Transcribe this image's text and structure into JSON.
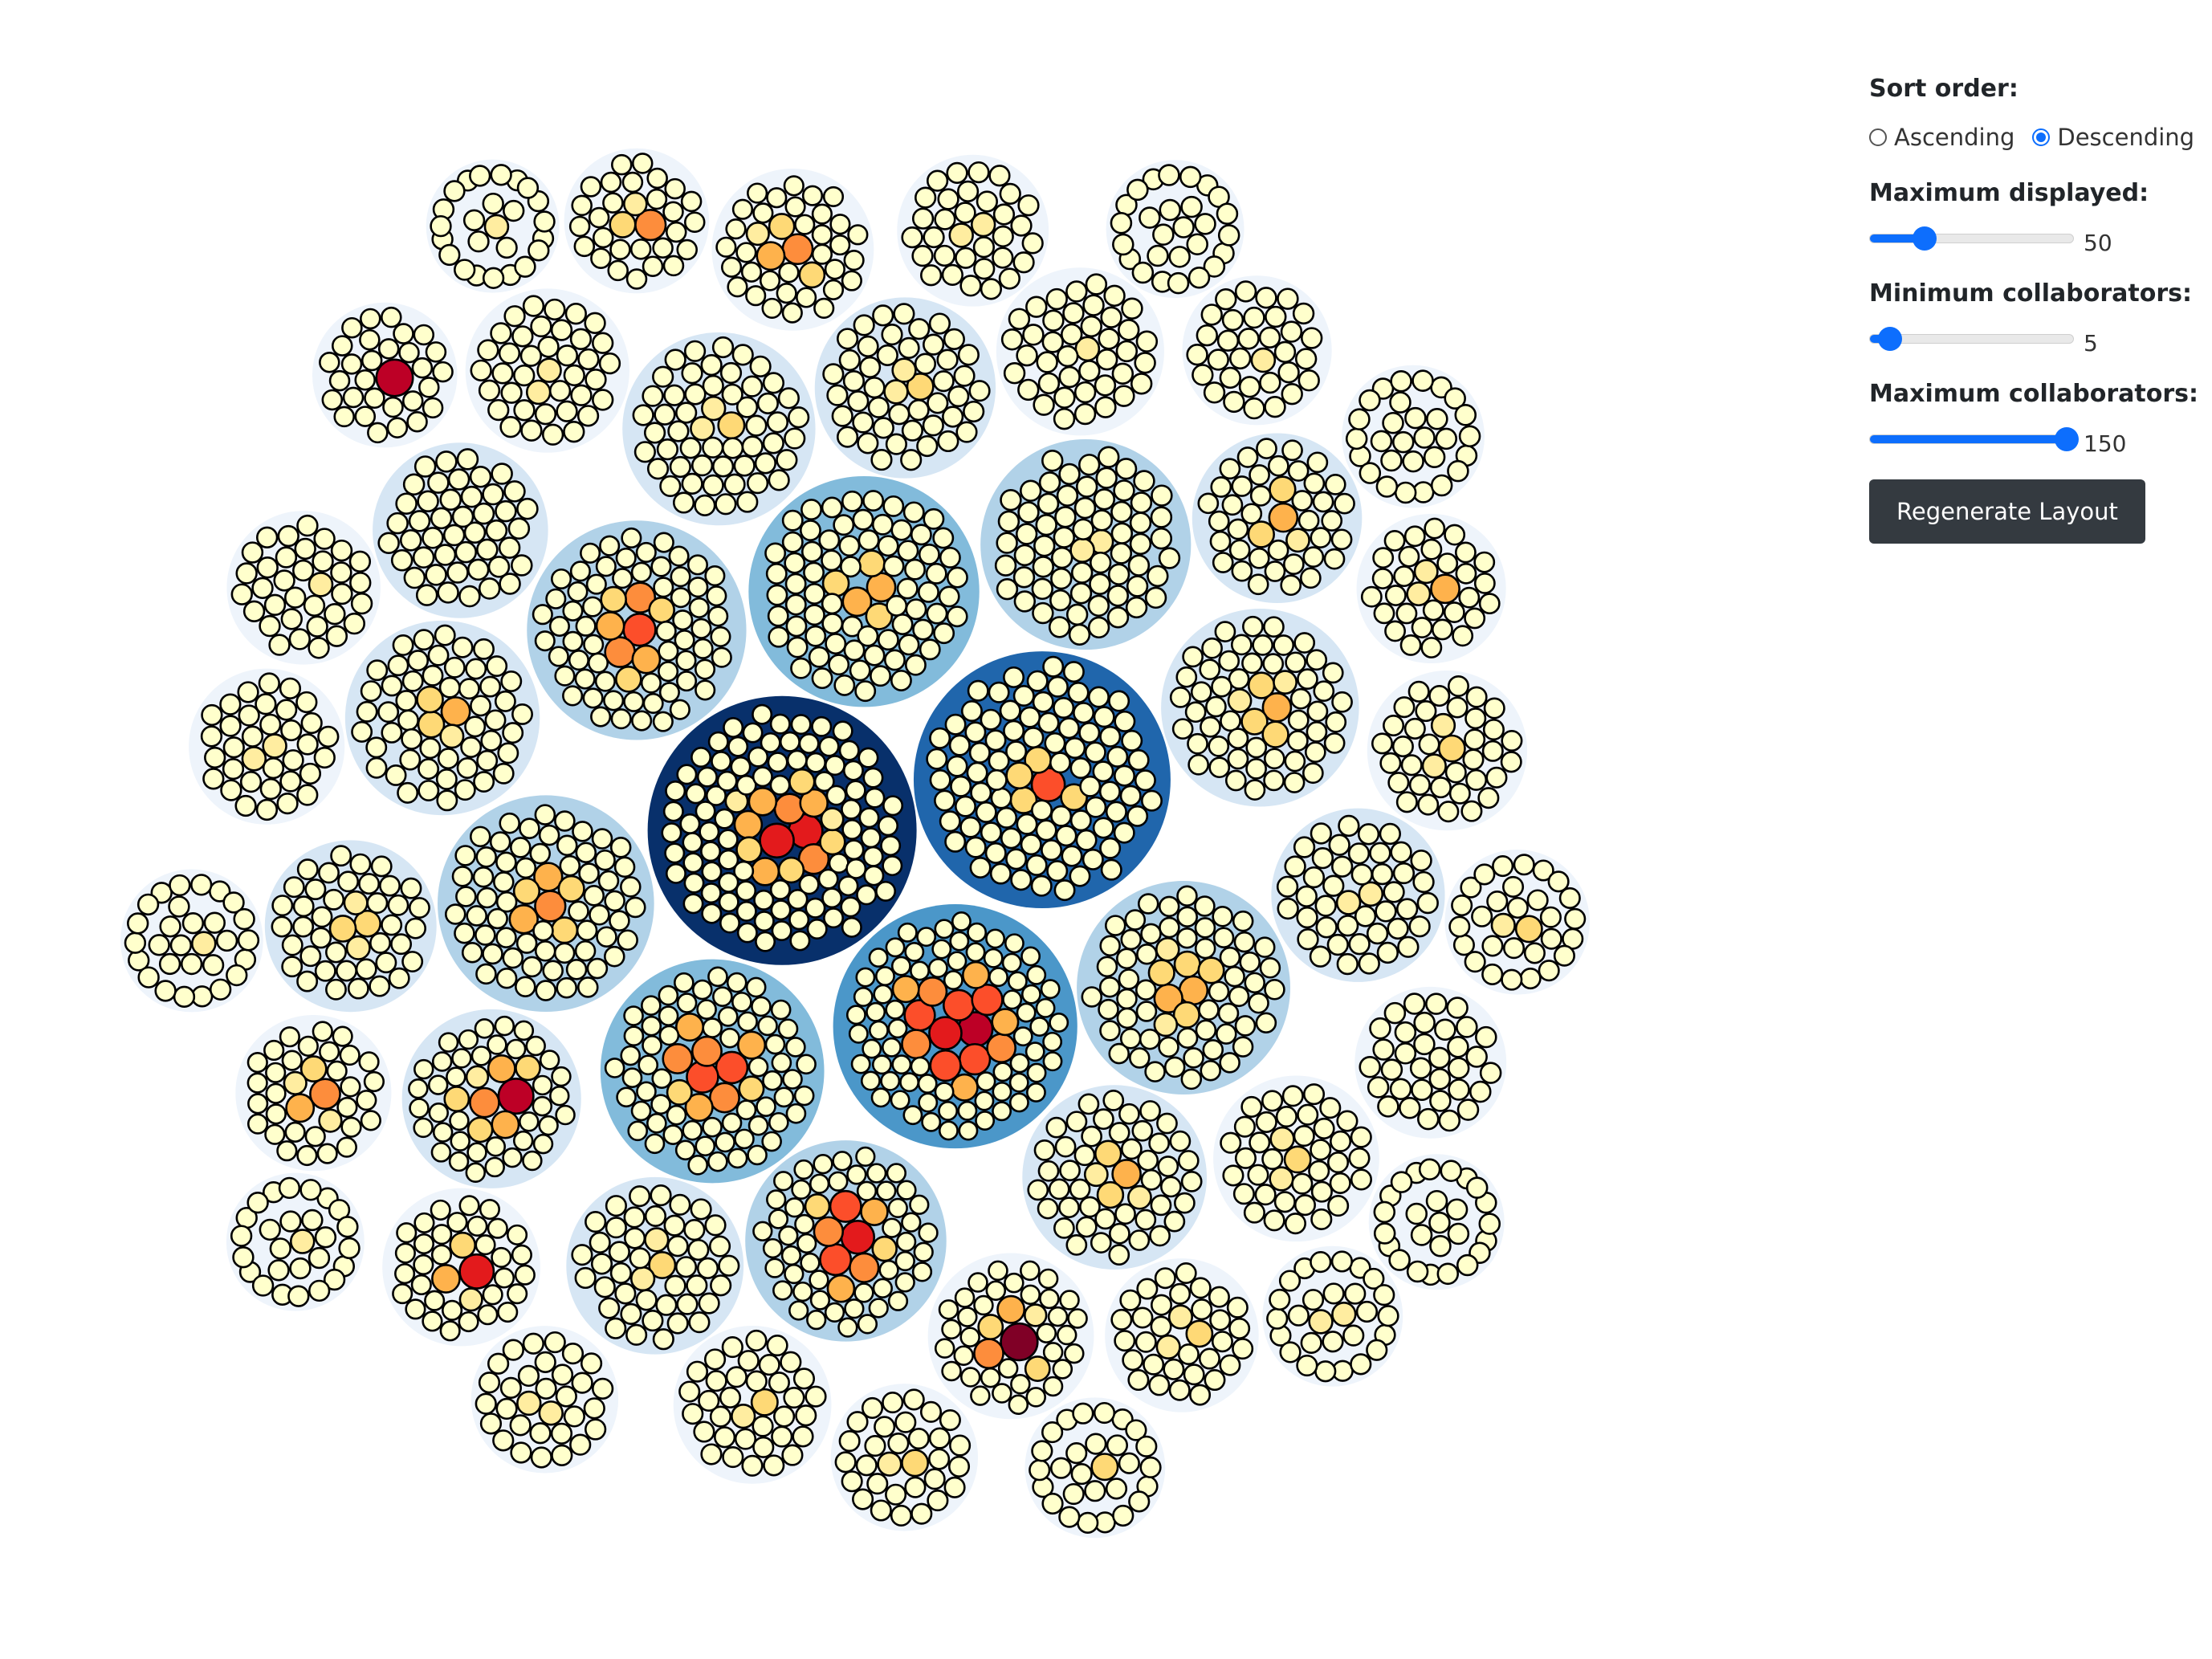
{
  "controls": {
    "sort_order": {
      "label": "Sort order:",
      "options": [
        "Ascending",
        "Descending"
      ],
      "selected": "Descending"
    },
    "max_displayed": {
      "label": "Maximum displayed:",
      "value": "50",
      "fraction": 0.27
    },
    "min_collaborators": {
      "label": "Minimum collaborators:",
      "value": "5",
      "fraction": 0.1
    },
    "max_collaborators": {
      "label": "Maximum collaborators:",
      "value": "150",
      "fraction": 0.97
    },
    "regenerate_label": "Regenerate Layout"
  },
  "colors": {
    "outer_scale": [
      "#eef4fb",
      "#d6e6f4",
      "#b1d2e8",
      "#82bbdb",
      "#4b97c9",
      "#2066ac",
      "#08306b"
    ],
    "inner_scale": [
      "#ffffcc",
      "#ffeda0",
      "#fed976",
      "#feb24c",
      "#fd8d3c",
      "#fc4e2a",
      "#e31a1c",
      "#bd0026",
      "#800026"
    ],
    "leaf_stroke": "#000000"
  },
  "chart_data": {
    "type": "circle-packing",
    "note_sort": "descending by group size",
    "groups": [
      {
        "members": 110,
        "hot": [
          6,
          6,
          4,
          4,
          3,
          3,
          3,
          3,
          2,
          2,
          2,
          2,
          1,
          1
        ]
      },
      {
        "members": 100,
        "hot": [
          5,
          2,
          2,
          2,
          2
        ]
      },
      {
        "members": 90,
        "hot": [
          7,
          6,
          5,
          5,
          5,
          5,
          5,
          4,
          4,
          4,
          3,
          3,
          3,
          3
        ]
      },
      {
        "members": 80,
        "hot": [
          3,
          3,
          2,
          2,
          2
        ]
      },
      {
        "members": 75,
        "hot": [
          5,
          5,
          4,
          4,
          4,
          3,
          3,
          3,
          2,
          2
        ]
      },
      {
        "members": 72,
        "hot": [
          5,
          4,
          4,
          3,
          3,
          2,
          2,
          2
        ]
      },
      {
        "members": 70,
        "hot": [
          4,
          3,
          3,
          2,
          2,
          2
        ]
      },
      {
        "members": 68,
        "hot": [
          3,
          3,
          2,
          2,
          2,
          2,
          1,
          1
        ]
      },
      {
        "members": 66,
        "hot": [
          1,
          1
        ]
      },
      {
        "members": 60,
        "hot": [
          6,
          5,
          5,
          4,
          4,
          3,
          3,
          2,
          2
        ]
      },
      {
        "members": 58,
        "hot": [
          3,
          2,
          2,
          2,
          1,
          1
        ]
      },
      {
        "members": 56,
        "hot": [
          3,
          2,
          2,
          1
        ]
      },
      {
        "members": 55,
        "hot": [
          2,
          1,
          1
        ]
      },
      {
        "members": 50,
        "hot": [
          3,
          2,
          2,
          1,
          1
        ]
      },
      {
        "members": 48,
        "hot": [
          2,
          1,
          1
        ]
      },
      {
        "members": 47,
        "hot": [
          7,
          4,
          3,
          3,
          2,
          2,
          2,
          1
        ]
      },
      {
        "members": 46,
        "hot": [
          2,
          1,
          1
        ]
      },
      {
        "members": 45,
        "hot": []
      },
      {
        "members": 44,
        "hot": [
          1,
          1
        ]
      },
      {
        "members": 43,
        "hot": [
          2,
          2,
          1,
          1
        ]
      },
      {
        "members": 42,
        "hot": [
          3,
          2,
          2,
          1
        ]
      },
      {
        "members": 41,
        "hot": [
          1
        ]
      },
      {
        "members": 40,
        "hot": [
          8,
          4,
          3,
          2,
          2,
          1
        ]
      },
      {
        "members": 40,
        "hot": [
          2,
          1,
          1
        ]
      },
      {
        "members": 39,
        "hot": [
          1,
          1
        ]
      },
      {
        "members": 38,
        "hot": [
          4,
          3,
          2,
          2,
          1
        ]
      },
      {
        "members": 37,
        "hot": [
          2,
          1,
          1
        ]
      },
      {
        "members": 36,
        "hot": [
          2,
          1
        ]
      },
      {
        "members": 36,
        "hot": [
          6,
          3,
          2,
          1
        ]
      },
      {
        "members": 35,
        "hot": [
          1,
          1
        ]
      },
      {
        "members": 35,
        "hot": [
          4,
          3,
          2,
          1,
          1
        ]
      },
      {
        "members": 34,
        "hot": [
          1
        ]
      },
      {
        "members": 34,
        "hot": [
          2,
          1,
          1
        ]
      },
      {
        "members": 33,
        "hot": []
      },
      {
        "members": 33,
        "hot": [
          1,
          1
        ]
      },
      {
        "members": 32,
        "hot": [
          3,
          1,
          1
        ]
      },
      {
        "members": 32,
        "hot": [
          1
        ]
      },
      {
        "members": 31,
        "hot": [
          2,
          1
        ]
      },
      {
        "members": 31,
        "hot": [
          1,
          1
        ]
      },
      {
        "members": 30,
        "hot": [
          4,
          2,
          1
        ]
      },
      {
        "members": 30,
        "hot": [
          7
        ]
      },
      {
        "members": 30,
        "hot": [
          2,
          1
        ]
      },
      {
        "members": 29,
        "hot": [
          1
        ]
      },
      {
        "members": 29,
        "hot": []
      },
      {
        "members": 28,
        "hot": [
          1,
          1
        ]
      },
      {
        "members": 28,
        "hot": [
          2
        ]
      },
      {
        "members": 27,
        "hot": []
      },
      {
        "members": 27,
        "hot": [
          1
        ]
      },
      {
        "members": 26,
        "hot": []
      },
      {
        "members": 25,
        "hot": [
          1
        ]
      }
    ]
  }
}
